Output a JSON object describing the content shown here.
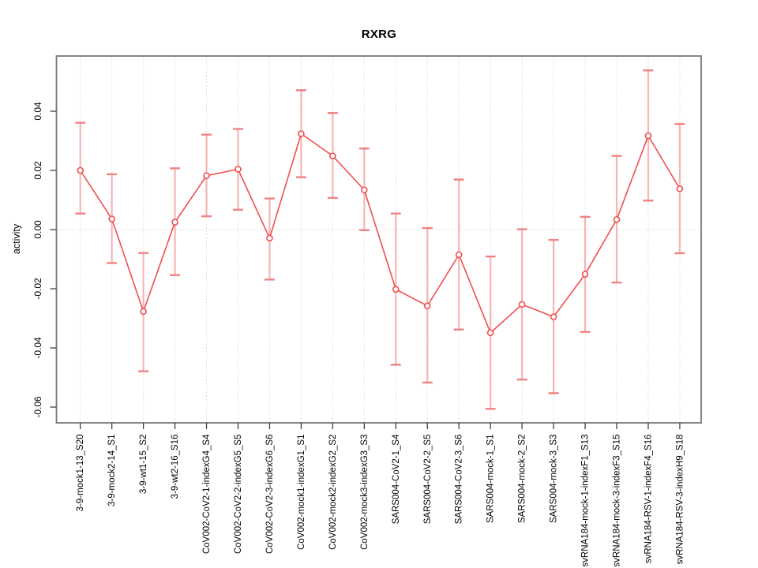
{
  "chart_data": {
    "type": "line",
    "title": "RXRG",
    "ylabel": "activity",
    "xlabel": "",
    "legend_position": "none",
    "marker": "open-circle",
    "error_bars": true,
    "grid": {
      "vertical": "dotted line at every category",
      "horizontal": "dotted line at 0.00 only"
    },
    "ylim": [
      -0.0653,
      0.0587
    ],
    "yticks": [
      {
        "label": "0.04",
        "value": 0.04
      },
      {
        "label": "0.02",
        "value": 0.02
      },
      {
        "label": "0.00",
        "value": 0.0
      },
      {
        "label": "-0.02",
        "value": -0.02
      },
      {
        "label": "-0.04",
        "value": -0.04
      },
      {
        "label": "-0.06",
        "value": -0.06
      }
    ],
    "categories": [
      "3-9-mock1-13_S20",
      "3-9-mock2-14_S1",
      "3-9-wt1-15_S2",
      "3-9-wt2-16_S16",
      "CoV002-CoV2-1-indexG4_S4",
      "CoV002-CoV2-2-indexG5_S5",
      "CoV002-CoV2-3-indexG6_S6",
      "CoV002-mock1-indexG1_S1",
      "CoV002-mock2-indexG2_S2",
      "CoV002-mock3-indexG3_S3",
      "SARS004-CoV2-1_S4",
      "SARS004-CoV2-2_S5",
      "SARS004-CoV2-3_S6",
      "SARS004-mock-1_S1",
      "SARS004-mock-2_S2",
      "SARS004-mock-3_S3",
      "svRNA184-mock-1-indexF1_S13",
      "svRNA184-mock-3-indexF3_S15",
      "svRNA184-RSV-1-indexF4_S16",
      "svRNA184-RSV-3-indexH9_S18"
    ],
    "series": [
      {
        "name": "activity",
        "values": [
          0.02,
          0.0036,
          -0.0277,
          0.0025,
          0.0182,
          0.0204,
          -0.0029,
          0.0324,
          0.0249,
          0.0134,
          -0.0202,
          -0.0258,
          -0.0085,
          -0.0349,
          -0.0253,
          -0.0295,
          -0.0151,
          0.0034,
          0.0317,
          0.0138
        ],
        "ci_low": [
          0.0054,
          -0.0113,
          -0.0479,
          -0.0154,
          0.0045,
          0.0067,
          -0.0169,
          0.0177,
          0.0107,
          -0.0002,
          -0.0457,
          -0.0517,
          -0.0338,
          -0.0606,
          -0.0507,
          -0.0553,
          -0.0346,
          -0.0179,
          0.0098,
          -0.008
        ],
        "ci_high": [
          0.0361,
          0.0187,
          -0.0079,
          0.0207,
          0.0321,
          0.034,
          0.0105,
          0.0471,
          0.0394,
          0.0274,
          0.0054,
          0.0005,
          0.0169,
          -0.0091,
          0.0001,
          -0.0035,
          0.0043,
          0.0249,
          0.0538,
          0.0357
        ]
      }
    ],
    "colors": {
      "series": "#f04e4e",
      "error_bar": "#f5a6a6",
      "error_cap": "#ee7676",
      "grid": "#d8d8d8",
      "box": "#787878",
      "tick": "#404040",
      "text": "#000000",
      "background": "#ffffff"
    }
  }
}
